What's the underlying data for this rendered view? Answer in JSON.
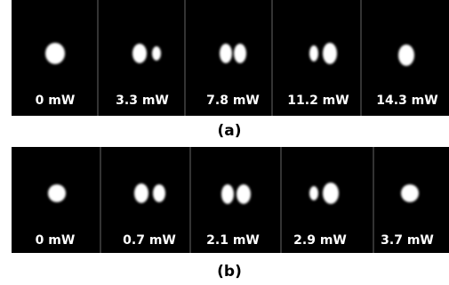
{
  "panels": [
    {
      "labels": [
        "0 mW",
        "3.3 mW",
        "7.8 mW",
        "11.2 mW",
        "14.3 mW"
      ],
      "caption": "(a)"
    },
    {
      "labels": [
        "0 mW",
        "0.7 mW",
        "2.1 mW",
        "2.9 mW",
        "3.7 mW"
      ],
      "caption": "(b)"
    }
  ]
}
